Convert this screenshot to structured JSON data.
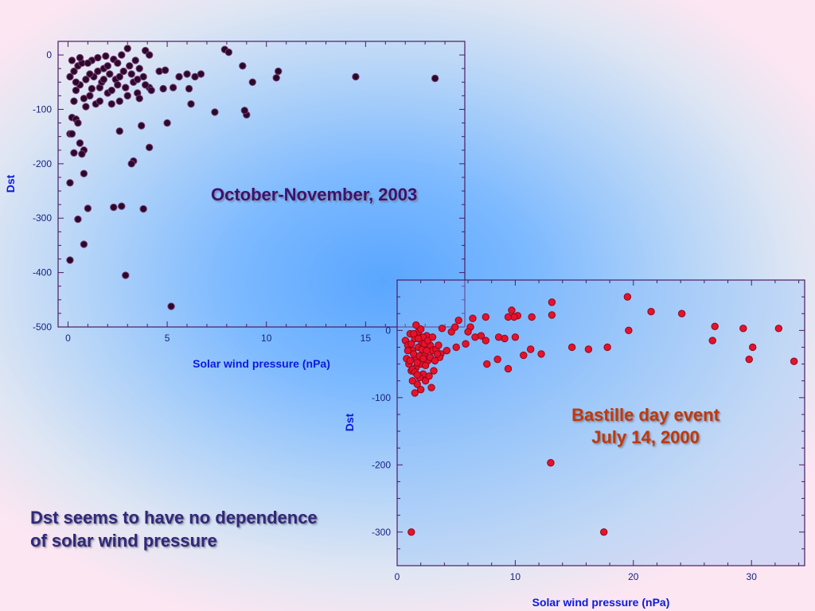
{
  "slide": {
    "conclusion_line1": "Dst seems to have no dependence",
    "conclusion_line2": "of solar wind pressure"
  },
  "colors": {
    "plot1_point": "#2b0a28",
    "plot2_point": "#e8112d",
    "axis_frame": "#4b1c63",
    "label": "#0c1adb"
  },
  "chart_data": [
    {
      "type": "scatter",
      "title": "October-November, 2003",
      "xlabel": "Solar wind pressure (nPa)",
      "ylabel": "Dst",
      "xlim": [
        -0.5,
        20
      ],
      "ylim": [
        -500,
        25
      ],
      "xticks": [
        0,
        5,
        10,
        15
      ],
      "yticks": [
        0,
        -100,
        -200,
        -300,
        -400,
        -500
      ],
      "grid": false,
      "points": [
        [
          7.9,
          10
        ],
        [
          8.1,
          5
        ],
        [
          3.9,
          8
        ],
        [
          4.1,
          0
        ],
        [
          3.0,
          12
        ],
        [
          9.3,
          -50
        ],
        [
          8.8,
          -20
        ],
        [
          10.6,
          -30
        ],
        [
          10.5,
          -42
        ],
        [
          14.5,
          -40
        ],
        [
          18.5,
          -43
        ],
        [
          4.6,
          -30
        ],
        [
          4.9,
          -28
        ],
        [
          5.6,
          -40
        ],
        [
          6.0,
          -35
        ],
        [
          6.4,
          -40
        ],
        [
          6.7,
          -35
        ],
        [
          5.3,
          -60
        ],
        [
          6.1,
          -62
        ],
        [
          4.8,
          -62
        ],
        [
          4.1,
          -60
        ],
        [
          6.2,
          -90
        ],
        [
          7.4,
          -105
        ],
        [
          9.0,
          -110
        ],
        [
          8.9,
          -102
        ],
        [
          5.0,
          -125
        ],
        [
          3.7,
          -130
        ],
        [
          2.6,
          -140
        ],
        [
          4.1,
          -170
        ],
        [
          3.3,
          -195
        ],
        [
          3.2,
          -200
        ],
        [
          0.2,
          -115
        ],
        [
          0.4,
          -118
        ],
        [
          0.5,
          -125
        ],
        [
          0.1,
          -145
        ],
        [
          0.2,
          -145
        ],
        [
          0.6,
          -162
        ],
        [
          0.8,
          -175
        ],
        [
          0.3,
          -180
        ],
        [
          0.7,
          -182
        ],
        [
          0.8,
          -218
        ],
        [
          0.1,
          -235
        ],
        [
          1.0,
          -282
        ],
        [
          2.3,
          -280
        ],
        [
          2.7,
          -278
        ],
        [
          3.8,
          -283
        ],
        [
          0.5,
          -302
        ],
        [
          0.8,
          -348
        ],
        [
          0.1,
          -377
        ],
        [
          2.9,
          -405
        ],
        [
          5.2,
          -462
        ],
        [
          0.1,
          -40
        ],
        [
          0.3,
          -30
        ],
        [
          0.6,
          -55
        ],
        [
          0.4,
          -65
        ],
        [
          0.9,
          -95
        ],
        [
          1.3,
          -40
        ],
        [
          1.6,
          -60
        ],
        [
          2.0,
          -70
        ],
        [
          2.6,
          -85
        ],
        [
          3.3,
          -50
        ],
        [
          3.5,
          -70
        ],
        [
          3.6,
          -80
        ],
        [
          0.5,
          -20
        ],
        [
          0.7,
          -15
        ],
        [
          1.2,
          -10
        ],
        [
          1.5,
          -5
        ],
        [
          1.8,
          -25
        ],
        [
          2.1,
          -35
        ],
        [
          2.4,
          -45
        ],
        [
          2.8,
          -30
        ],
        [
          3.1,
          -20
        ],
        [
          3.4,
          -10
        ],
        [
          0.3,
          -85
        ],
        [
          0.8,
          -80
        ],
        [
          1.1,
          -75
        ],
        [
          1.4,
          -90
        ],
        [
          1.7,
          -50
        ],
        [
          2.2,
          -65
        ],
        [
          2.5,
          -55
        ],
        [
          2.9,
          -60
        ],
        [
          3.6,
          -25
        ],
        [
          0.2,
          -10
        ],
        [
          0.6,
          -5
        ],
        [
          1.0,
          -15
        ],
        [
          1.9,
          -2
        ],
        [
          2.3,
          -8
        ],
        [
          2.7,
          0
        ],
        [
          3.8,
          -40
        ],
        [
          1.2,
          -62
        ],
        [
          1.5,
          -30
        ],
        [
          2.0,
          -20
        ],
        [
          2.5,
          -15
        ],
        [
          0.9,
          -45
        ],
        [
          1.6,
          -85
        ],
        [
          2.2,
          -90
        ],
        [
          3.0,
          -75
        ],
        [
          3.9,
          -55
        ],
        [
          4.2,
          -65
        ],
        [
          0.4,
          -50
        ],
        [
          1.1,
          -35
        ],
        [
          1.8,
          -45
        ],
        [
          2.6,
          -40
        ],
        [
          3.2,
          -35
        ],
        [
          3.5,
          -45
        ]
      ]
    },
    {
      "type": "scatter",
      "title": "Bastille day event",
      "subtitle": "July 14, 2000",
      "xlabel": "Solar wind pressure (nPa)",
      "ylabel": "Dst",
      "xlim": [
        0,
        34.5
      ],
      "ylim": [
        -350,
        75
      ],
      "xticks": [
        0,
        10,
        20,
        30
      ],
      "yticks": [
        0,
        -100,
        -200,
        -300
      ],
      "grid": false,
      "points": [
        [
          19.5,
          50
        ],
        [
          13.1,
          42
        ],
        [
          9.7,
          30
        ],
        [
          21.5,
          28
        ],
        [
          24.1,
          25
        ],
        [
          13.1,
          23
        ],
        [
          10.2,
          22
        ],
        [
          9.9,
          20
        ],
        [
          9.4,
          20
        ],
        [
          11.4,
          20
        ],
        [
          5.2,
          15
        ],
        [
          6.4,
          18
        ],
        [
          7.5,
          20
        ],
        [
          26.9,
          6
        ],
        [
          29.3,
          3
        ],
        [
          32.3,
          3
        ],
        [
          19.6,
          0
        ],
        [
          6.2,
          5
        ],
        [
          6.0,
          -2
        ],
        [
          4.6,
          -2
        ],
        [
          3.8,
          3
        ],
        [
          4.9,
          5
        ],
        [
          7.1,
          -8
        ],
        [
          8.6,
          -10
        ],
        [
          9.1,
          -12
        ],
        [
          10.0,
          -10
        ],
        [
          6.6,
          -10
        ],
        [
          7.5,
          -15
        ],
        [
          26.7,
          -15
        ],
        [
          14.8,
          -25
        ],
        [
          16.2,
          -28
        ],
        [
          17.8,
          -25
        ],
        [
          30.1,
          -25
        ],
        [
          11.3,
          -28
        ],
        [
          12.2,
          -35
        ],
        [
          10.7,
          -37
        ],
        [
          29.8,
          -43
        ],
        [
          33.6,
          -46
        ],
        [
          7.6,
          -50
        ],
        [
          8.5,
          -43
        ],
        [
          9.4,
          -57
        ],
        [
          4.2,
          -30
        ],
        [
          3.7,
          -35
        ],
        [
          5.0,
          -25
        ],
        [
          5.8,
          -20
        ],
        [
          1.2,
          -300
        ],
        [
          13.0,
          -197
        ],
        [
          17.5,
          -300
        ],
        [
          0.7,
          -15
        ],
        [
          0.9,
          -22
        ],
        [
          1.1,
          -5
        ],
        [
          1.3,
          -30
        ],
        [
          1.5,
          -12
        ],
        [
          1.6,
          -40
        ],
        [
          1.8,
          -25
        ],
        [
          2.0,
          -50
        ],
        [
          2.1,
          -18
        ],
        [
          2.3,
          -35
        ],
        [
          2.5,
          -8
        ],
        [
          2.6,
          -45
        ],
        [
          2.8,
          -22
        ],
        [
          3.0,
          -30
        ],
        [
          3.1,
          -60
        ],
        [
          2.2,
          -65
        ],
        [
          1.9,
          -70
        ],
        [
          1.7,
          -80
        ],
        [
          1.5,
          -93
        ],
        [
          2.4,
          -75
        ],
        [
          2.9,
          -85
        ],
        [
          1.0,
          -50
        ],
        [
          1.2,
          -60
        ],
        [
          1.4,
          -35
        ],
        [
          1.6,
          -55
        ],
        [
          1.8,
          -2
        ],
        [
          2.0,
          2
        ],
        [
          2.2,
          -10
        ],
        [
          0.8,
          -42
        ],
        [
          1.1,
          -45
        ],
        [
          1.3,
          -58
        ],
        [
          1.5,
          -62
        ],
        [
          1.7,
          -48
        ],
        [
          1.9,
          -38
        ],
        [
          2.1,
          -28
        ],
        [
          2.3,
          -20
        ],
        [
          2.6,
          -15
        ],
        [
          2.8,
          -40
        ],
        [
          3.3,
          -28
        ],
        [
          3.5,
          -22
        ],
        [
          3.6,
          -40
        ],
        [
          1.4,
          -5
        ],
        [
          1.6,
          8
        ],
        [
          2.0,
          -88
        ],
        [
          2.4,
          -52
        ],
        [
          2.7,
          -68
        ],
        [
          3.0,
          -10
        ],
        [
          3.2,
          -45
        ],
        [
          0.9,
          -30
        ],
        [
          1.2,
          -20
        ],
        [
          1.8,
          -12
        ],
        [
          2.5,
          -30
        ],
        [
          3.4,
          -35
        ],
        [
          1.3,
          -75
        ],
        [
          1.7,
          -66
        ],
        [
          2.2,
          -42
        ]
      ]
    }
  ]
}
